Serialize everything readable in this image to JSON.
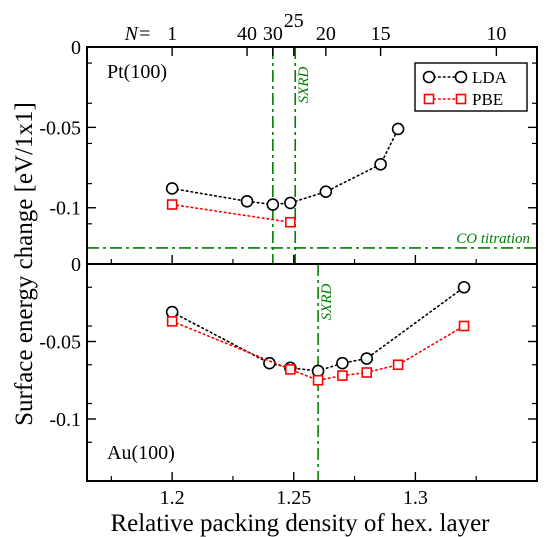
{
  "chart_data": {
    "type": "scatter",
    "xlabel": "Relative packing density of hex. layer",
    "ylabel": "Surface energy change [eV/1x1]",
    "xlim": [
      1.165,
      1.35
    ],
    "x_ticks": [
      1.2,
      1.25,
      1.3
    ],
    "top_axis": {
      "prefix": "N=",
      "ticks": [
        {
          "label": "1",
          "x": 1.2
        },
        {
          "label": "40",
          "x": 1.2308
        },
        {
          "label": "30",
          "x": 1.2414
        },
        {
          "label": "25",
          "x": 1.25
        },
        {
          "label": "20",
          "x": 1.2632
        },
        {
          "label": "15",
          "x": 1.2857
        },
        {
          "label": "10",
          "x": 1.3333
        }
      ]
    },
    "legend": {
      "placement": "top-right",
      "entries": [
        {
          "name": "LDA",
          "color": "#000000",
          "marker": "circle"
        },
        {
          "name": "PBE",
          "color": "#ff0000",
          "marker": "square"
        }
      ]
    },
    "panels": [
      {
        "label": "Pt(100)",
        "ylim": [
          -0.135,
          0
        ],
        "y_ticks": [
          0,
          -0.05,
          -0.1
        ],
        "y_tick_labels": [
          "0",
          "-0.05",
          "-0.1"
        ],
        "series": [
          {
            "name": "LDA",
            "x": [
              1.2,
              1.2308,
              1.2414,
              1.2486,
              1.2632,
              1.2857,
              1.2929
            ],
            "y": [
              -0.088,
              -0.096,
              -0.098,
              -0.097,
              -0.09,
              -0.073,
              -0.051
            ]
          },
          {
            "name": "PBE",
            "x": [
              1.2,
              1.2486
            ],
            "y": [
              -0.098,
              -0.109
            ]
          }
        ],
        "vlines": [
          {
            "x": 1.2414,
            "label": ""
          },
          {
            "x": 1.2506,
            "label": "SXRD"
          }
        ],
        "hlines": [
          {
            "y": -0.125,
            "label": "CO titration"
          }
        ]
      },
      {
        "label": "Au(100)",
        "ylim": [
          -0.14,
          0
        ],
        "y_ticks": [
          0,
          -0.05,
          -0.1
        ],
        "y_tick_labels": [
          "0",
          "-0.05",
          "-0.1"
        ],
        "series": [
          {
            "name": "LDA",
            "x": [
              1.2,
              1.24,
              1.2486,
              1.26,
              1.27,
              1.28,
              1.32
            ],
            "y": [
              -0.031,
              -0.064,
              -0.067,
              -0.069,
              -0.064,
              -0.061,
              -0.015
            ]
          },
          {
            "name": "PBE",
            "x": [
              1.2,
              1.2486,
              1.26,
              1.27,
              1.28,
              1.2929,
              1.32
            ],
            "y": [
              -0.037,
              -0.068,
              -0.075,
              -0.072,
              -0.07,
              -0.065,
              -0.04
            ]
          }
        ],
        "vlines": [
          {
            "x": 1.26,
            "label": "SXRD"
          }
        ],
        "hlines": []
      }
    ],
    "colors": {
      "lda": "#000000",
      "pbe": "#ff0000",
      "reference_lines": "#008000",
      "axes": "#000000"
    }
  }
}
